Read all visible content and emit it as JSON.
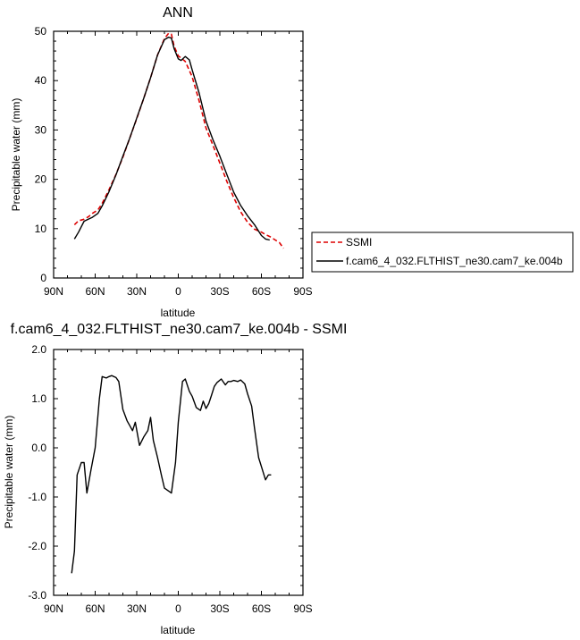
{
  "chart_data": [
    {
      "type": "line",
      "title": "ANN",
      "xlabel": "latitude",
      "ylabel": "Precipitable water (mm)",
      "xlim": [
        -90,
        90
      ],
      "ylim": [
        0,
        50
      ],
      "x_ticks": [
        -90,
        -60,
        -30,
        0,
        30,
        60,
        90
      ],
      "x_tick_labels": [
        "90N",
        "60N",
        "30N",
        "0",
        "30S",
        "60S",
        "90S"
      ],
      "y_ticks": [
        0,
        10,
        20,
        30,
        40,
        50
      ],
      "y_tick_labels": [
        "0",
        "10",
        "20",
        "30",
        "40",
        "50"
      ],
      "grid": false,
      "legend": {
        "placement": "right"
      },
      "series": [
        {
          "name": "SSMI",
          "color": "#dd0000",
          "dash": true,
          "x": [
            -75,
            -72,
            -68,
            -65,
            -62,
            -58,
            -55,
            -50,
            -45,
            -40,
            -35,
            -30,
            -25,
            -20,
            -15,
            -10,
            -7,
            -5,
            -3,
            0,
            2,
            5,
            10,
            15,
            20,
            25,
            30,
            35,
            40,
            45,
            50,
            55,
            60,
            63,
            66,
            70,
            73,
            76
          ],
          "values": [
            10.8,
            11.6,
            11.9,
            12.4,
            13.1,
            13.8,
            15.1,
            17.9,
            21.0,
            24.5,
            28.4,
            32.3,
            36.4,
            40.6,
            45.2,
            48.5,
            49.6,
            49.4,
            47.0,
            45.0,
            44.6,
            43.9,
            40.8,
            35.9,
            30.4,
            26.9,
            23.3,
            19.6,
            16.3,
            13.4,
            11.3,
            9.9,
            9.3,
            8.8,
            8.4,
            7.7,
            7.2,
            6.0
          ]
        },
        {
          "name": "f.cam6_4_032.FLTHIST_ne30.cam7_ke.004b",
          "color": "#000000",
          "dash": false,
          "x": [
            -75,
            -72,
            -68,
            -65,
            -62,
            -58,
            -55,
            -50,
            -45,
            -40,
            -35,
            -30,
            -25,
            -20,
            -15,
            -10,
            -7,
            -5,
            -3,
            0,
            2,
            5,
            8,
            10,
            15,
            20,
            25,
            30,
            35,
            40,
            45,
            50,
            55,
            60,
            63,
            66
          ],
          "values": [
            7.9,
            9.3,
            11.5,
            11.9,
            12.3,
            13.1,
            14.6,
            17.5,
            20.9,
            24.7,
            28.4,
            32.4,
            36.4,
            40.6,
            45.2,
            48.3,
            48.8,
            48.6,
            46.5,
            44.4,
            44.1,
            44.9,
            44.2,
            42.2,
            37.5,
            31.8,
            28.0,
            24.7,
            21.0,
            17.4,
            14.7,
            12.6,
            10.8,
            8.6,
            7.9,
            7.7
          ]
        }
      ]
    },
    {
      "type": "line",
      "title": "f.cam6_4_032.FLTHIST_ne30.cam7_ke.004b - SSMI",
      "xlabel": "latitude",
      "ylabel": "Precipitable water (mm)",
      "xlim": [
        -90,
        90
      ],
      "ylim": [
        -3.0,
        2.0
      ],
      "x_ticks": [
        -90,
        -60,
        -30,
        0,
        30,
        60,
        90
      ],
      "x_tick_labels": [
        "90N",
        "60N",
        "30N",
        "0",
        "30S",
        "60S",
        "90S"
      ],
      "y_ticks": [
        -3.0,
        -2.0,
        -1.0,
        0.0,
        1.0,
        2.0
      ],
      "y_tick_labels": [
        "-3.0",
        "-2.0",
        "-1.0",
        "0.0",
        "1.0",
        "2.0"
      ],
      "grid": false,
      "series": [
        {
          "color": "#000000",
          "dash": false,
          "x": [
            -77,
            -75,
            -73,
            -70,
            -68,
            -66,
            -63,
            -60,
            -57,
            -55,
            -52,
            -50,
            -48,
            -45,
            -43,
            -40,
            -37,
            -35,
            -33,
            -31,
            -28,
            -25,
            -22,
            -20,
            -18,
            -15,
            -12,
            -10,
            -5,
            -2,
            0,
            3,
            5,
            8,
            10,
            13,
            16,
            18,
            20,
            22,
            24,
            26,
            28,
            31,
            34,
            36,
            38,
            40,
            43,
            45,
            48,
            50,
            53,
            55,
            58,
            60,
            63,
            65,
            67
          ],
          "values": [
            -2.55,
            -2.1,
            -0.55,
            -0.3,
            -0.3,
            -0.92,
            -0.45,
            0.0,
            1.0,
            1.45,
            1.42,
            1.45,
            1.47,
            1.43,
            1.35,
            0.78,
            0.55,
            0.45,
            0.35,
            0.52,
            0.05,
            0.22,
            0.35,
            0.62,
            0.15,
            -0.2,
            -0.58,
            -0.82,
            -0.92,
            -0.3,
            0.52,
            1.35,
            1.4,
            1.15,
            1.05,
            0.82,
            0.76,
            0.95,
            0.8,
            0.9,
            1.07,
            1.25,
            1.33,
            1.4,
            1.28,
            1.35,
            1.35,
            1.37,
            1.35,
            1.38,
            1.3,
            1.1,
            0.85,
            0.4,
            -0.2,
            -0.38,
            -0.65,
            -0.55,
            -0.55
          ]
        }
      ]
    }
  ]
}
